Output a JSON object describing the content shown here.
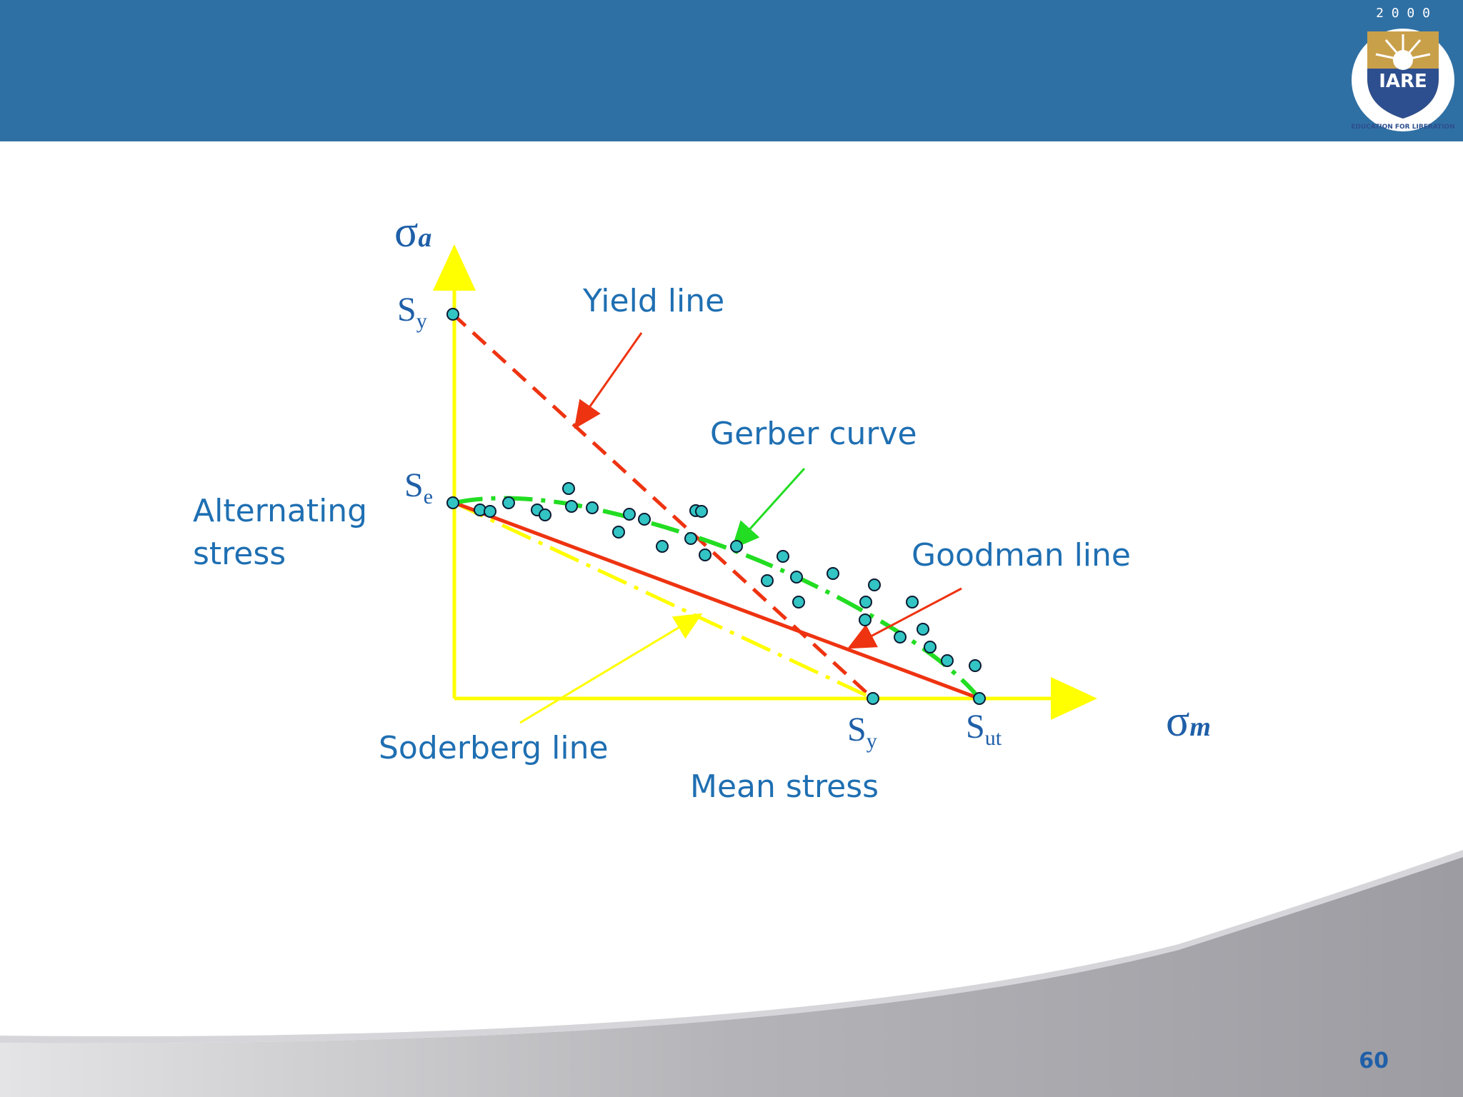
{
  "header": {
    "bar_color": "#2f70a4"
  },
  "logo": {
    "year": "2 0 0 0",
    "name": "IARE",
    "motto": "EDUCATION FOR LIBERATION"
  },
  "diagram": {
    "y_axis_symbol": "σ",
    "y_axis_subscript": "a",
    "x_axis_symbol": "σ",
    "x_axis_subscript": "m",
    "y_axis_description": "Alternating stress",
    "x_axis_description": "Mean stress",
    "sy_label_y_main": "S",
    "sy_label_y_sub": "y",
    "se_label_main": "S",
    "se_label_sub": "e",
    "sy_label_x_main": "S",
    "sy_label_x_sub": "y",
    "sut_label_main": "S",
    "sut_label_sub": "ut",
    "yield_line_label": "Yield line",
    "gerber_curve_label": "Gerber curve",
    "goodman_line_label": "Goodman line",
    "soderberg_line_label": "Soderberg line",
    "colors": {
      "axes": "#ffff00",
      "yield_line": "#ee3311",
      "goodman_line": "#ee3311",
      "gerber_curve": "#22dd22",
      "soderberg_line": "#ffff00",
      "data_points": "#33c4c4",
      "text": "#1f6fb2"
    }
  },
  "footer": {
    "page_number": "60"
  }
}
